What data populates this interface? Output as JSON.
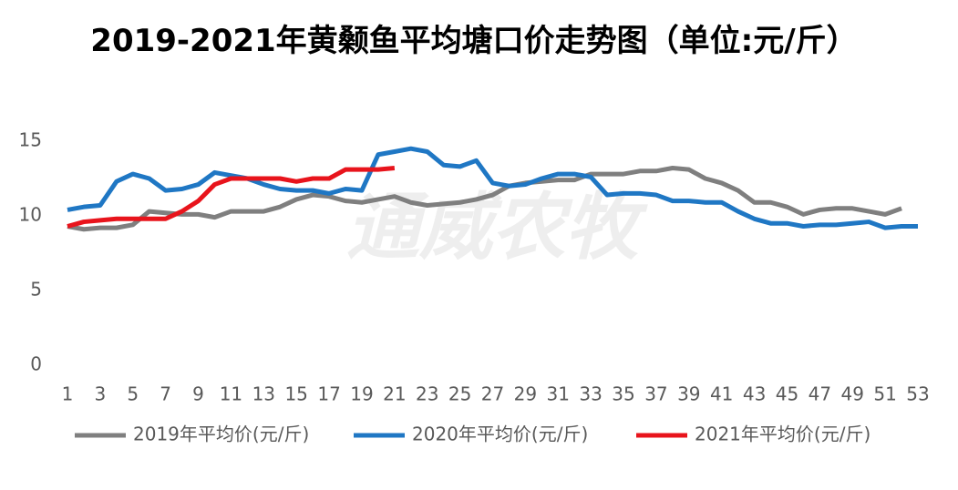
{
  "chart_data": {
    "type": "line",
    "title": "2019-2021年黄颡鱼平均塘口价走势图（单位:元/斤）",
    "watermark": "通威农牧",
    "x": [
      1,
      2,
      3,
      4,
      5,
      6,
      7,
      8,
      9,
      10,
      11,
      12,
      13,
      14,
      15,
      16,
      17,
      18,
      19,
      20,
      21,
      22,
      23,
      24,
      25,
      26,
      27,
      28,
      29,
      30,
      31,
      32,
      33,
      34,
      35,
      36,
      37,
      38,
      39,
      40,
      41,
      42,
      43,
      44,
      45,
      46,
      47,
      48,
      49,
      50,
      51,
      52,
      53
    ],
    "xlim": [
      1,
      53
    ],
    "xticks": [
      1,
      3,
      5,
      7,
      9,
      11,
      13,
      15,
      17,
      19,
      21,
      23,
      25,
      27,
      29,
      31,
      33,
      35,
      37,
      39,
      41,
      43,
      45,
      47,
      49,
      51,
      53
    ],
    "ylim": [
      0,
      15
    ],
    "yticks": [
      0,
      5,
      10,
      15
    ],
    "legend": "bottom",
    "series": [
      {
        "name": "2019年平均价(元/斤)",
        "color": "#7f7f7f",
        "values": [
          9.3,
          9.1,
          9.2,
          9.2,
          9.4,
          10.3,
          10.2,
          10.1,
          10.1,
          9.9,
          10.3,
          10.3,
          10.3,
          10.6,
          11.1,
          11.4,
          11.3,
          11.0,
          10.9,
          11.1,
          11.3,
          10.9,
          10.7,
          10.8,
          10.9,
          11.1,
          11.4,
          12.0,
          12.2,
          12.3,
          12.4,
          12.4,
          12.8,
          12.8,
          12.8,
          13.0,
          13.0,
          13.2,
          13.1,
          12.5,
          12.2,
          11.7,
          10.9,
          10.9,
          10.6,
          10.1,
          10.4,
          10.5,
          10.5,
          10.3,
          10.1,
          10.5,
          null
        ]
      },
      {
        "name": "2020年平均价(元/斤)",
        "color": "#1f77c4",
        "values": [
          10.4,
          10.6,
          10.7,
          12.3,
          12.8,
          12.5,
          11.7,
          11.8,
          12.1,
          12.9,
          12.7,
          12.5,
          12.1,
          11.8,
          11.7,
          11.7,
          11.5,
          11.8,
          11.7,
          14.1,
          14.3,
          14.5,
          14.3,
          13.4,
          13.3,
          13.7,
          12.2,
          12.0,
          12.1,
          12.5,
          12.8,
          12.8,
          12.6,
          11.4,
          11.5,
          11.5,
          11.4,
          11.0,
          11.0,
          10.9,
          10.9,
          10.3,
          9.8,
          9.5,
          9.5,
          9.3,
          9.4,
          9.4,
          9.5,
          9.6,
          9.2,
          9.3,
          9.3
        ]
      },
      {
        "name": "2021年平均价(元/斤)",
        "color": "#e8141c",
        "values": [
          9.3,
          9.6,
          9.7,
          9.8,
          9.8,
          9.8,
          9.8,
          10.3,
          11.0,
          12.1,
          12.5,
          12.5,
          12.5,
          12.5,
          12.3,
          12.5,
          12.5,
          13.1,
          13.1,
          13.1,
          13.2,
          null,
          null,
          null,
          null,
          null,
          null,
          null,
          null,
          null,
          null,
          null,
          null,
          null,
          null,
          null,
          null,
          null,
          null,
          null,
          null,
          null,
          null,
          null,
          null,
          null,
          null,
          null,
          null,
          null,
          null,
          null,
          null
        ]
      }
    ]
  }
}
